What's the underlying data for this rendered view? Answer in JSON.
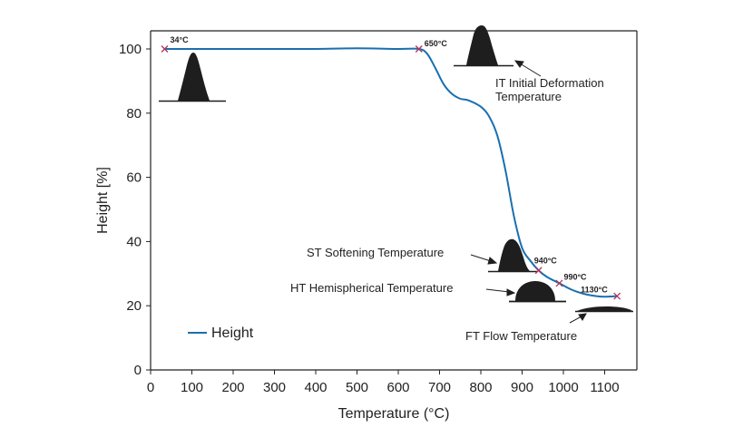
{
  "chart_data": {
    "type": "line",
    "xlabel": "Temperature (°C)",
    "ylabel": "Height [%]",
    "xlim": [
      0,
      1180
    ],
    "ylim": [
      0,
      105
    ],
    "x_ticks": [
      0,
      100,
      200,
      300,
      400,
      500,
      600,
      700,
      800,
      900,
      1000,
      1100
    ],
    "y_ticks": [
      0,
      20,
      40,
      60,
      80,
      100
    ],
    "grid": false,
    "legend": "bottom-left",
    "series": [
      {
        "name": "Height",
        "color": "#1a6fb0",
        "x": [
          34,
          100,
          200,
          300,
          400,
          500,
          600,
          650,
          670,
          690,
          710,
          730,
          750,
          770,
          800,
          820,
          840,
          860,
          880,
          900,
          920,
          940,
          960,
          990,
          1020,
          1050,
          1080,
          1100,
          1130
        ],
        "y": [
          100,
          100,
          100,
          100,
          100,
          100.2,
          100,
          100,
          98.5,
          94,
          89,
          86,
          84.5,
          84,
          82,
          79,
          73,
          62,
          48,
          38,
          34,
          31,
          29,
          27,
          25,
          23.7,
          23,
          22.8,
          23
        ]
      }
    ],
    "points": [
      {
        "x": 34,
        "y": 100,
        "label": "34°C"
      },
      {
        "x": 650,
        "y": 100,
        "label": "650°C"
      },
      {
        "x": 940,
        "y": 31,
        "label": "940°C"
      },
      {
        "x": 990,
        "y": 27,
        "label": "990°C"
      },
      {
        "x": 1130,
        "y": 23,
        "label": "1130°C"
      }
    ],
    "annotations": [
      {
        "id": "it",
        "lines": [
          "IT Initial Deformation",
          "Temperature"
        ]
      },
      {
        "id": "st",
        "lines": [
          "ST Softening Temperature"
        ]
      },
      {
        "id": "ht",
        "lines": [
          "HT Hemispherical Temperature"
        ]
      },
      {
        "id": "ft",
        "lines": [
          "FT Flow Temperature"
        ]
      }
    ],
    "colors": {
      "line": "#1a6fb0",
      "marker": "#b0355a",
      "shape": "#1e1e1e",
      "axis": "#222222"
    }
  }
}
